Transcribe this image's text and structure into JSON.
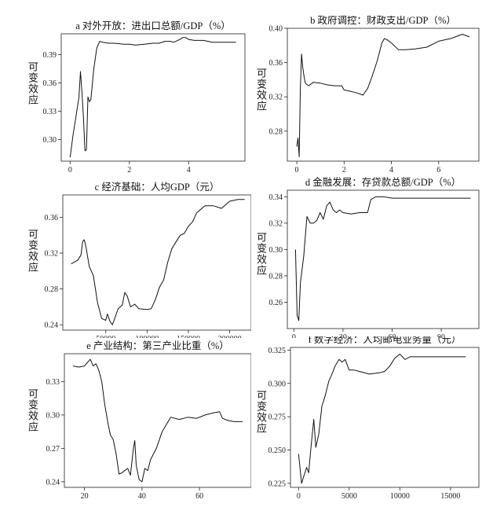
{
  "y_axis_label": "可变效应",
  "chart_data": [
    {
      "type": "line",
      "title": "a 对外开放：进出口总额/GDP（%）",
      "xlabel": "",
      "ylabel": "可变效应",
      "xlim": [
        -0.3,
        5.9
      ],
      "ylim": [
        0.277,
        0.412
      ],
      "xticks": [
        0,
        2,
        4
      ],
      "yticks": [
        0.3,
        0.33,
        0.36,
        0.39
      ],
      "yticklabels": [
        "0.30",
        "0.33",
        "0.36",
        "0.39"
      ],
      "series": [
        {
          "x": [
            0.0,
            0.1,
            0.2,
            0.3,
            0.35,
            0.4,
            0.45,
            0.5,
            0.55,
            0.6,
            0.65,
            0.7,
            0.8,
            0.9,
            1.0,
            1.1,
            1.3,
            1.5,
            1.8,
            2.0,
            2.2,
            2.5,
            2.8,
            3.0,
            3.2,
            3.4,
            3.5,
            3.7,
            3.8,
            3.9,
            4.0,
            4.2,
            4.5,
            4.8,
            5.0,
            5.3,
            5.6
          ],
          "y": [
            0.281,
            0.305,
            0.325,
            0.345,
            0.372,
            0.35,
            0.323,
            0.288,
            0.289,
            0.345,
            0.34,
            0.342,
            0.375,
            0.397,
            0.404,
            0.403,
            0.402,
            0.402,
            0.401,
            0.401,
            0.4,
            0.401,
            0.402,
            0.402,
            0.404,
            0.404,
            0.403,
            0.406,
            0.408,
            0.408,
            0.406,
            0.405,
            0.405,
            0.403,
            0.403,
            0.403,
            0.403
          ]
        }
      ]
    },
    {
      "type": "line",
      "title": "b 政府调控：财政支出/GDP（%）",
      "xlabel": "",
      "ylabel": "可变效应",
      "xlim": [
        -0.4,
        7.7
      ],
      "ylim": [
        0.245,
        0.4
      ],
      "xticks": [
        0,
        2,
        4,
        6
      ],
      "yticks": [
        0.28,
        0.32,
        0.36,
        0.4
      ],
      "yticklabels": [
        "0.28",
        "0.32",
        "0.36",
        "0.40"
      ],
      "series": [
        {
          "x": [
            0.0,
            0.05,
            0.1,
            0.15,
            0.2,
            0.25,
            0.3,
            0.35,
            0.4,
            0.5,
            0.7,
            1.0,
            1.3,
            1.6,
            1.9,
            2.0,
            2.2,
            2.5,
            2.8,
            3.0,
            3.2,
            3.4,
            3.6,
            3.7,
            3.8,
            4.0,
            4.3,
            4.6,
            5.0,
            5.5,
            6.0,
            6.5,
            7.0,
            7.3
          ],
          "y": [
            0.262,
            0.272,
            0.25,
            0.33,
            0.37,
            0.355,
            0.345,
            0.337,
            0.335,
            0.333,
            0.337,
            0.336,
            0.334,
            0.333,
            0.333,
            0.328,
            0.327,
            0.325,
            0.322,
            0.33,
            0.345,
            0.362,
            0.383,
            0.388,
            0.387,
            0.383,
            0.375,
            0.375,
            0.376,
            0.378,
            0.385,
            0.388,
            0.393,
            0.39
          ]
        }
      ]
    },
    {
      "type": "line",
      "title": "c 经济基础：人均GDP（元）",
      "xlabel": "",
      "ylabel": "可变效应",
      "xlim": [
        -2000,
        226000
      ],
      "ylim": [
        0.234,
        0.385
      ],
      "xticks": [
        50000,
        100000,
        150000,
        200000
      ],
      "yticks": [
        0.24,
        0.28,
        0.32,
        0.36
      ],
      "yticklabels": [
        "0.24",
        "0.28",
        "0.32",
        "0.36"
      ],
      "series": [
        {
          "x": [
            8000,
            12000,
            16000,
            20000,
            22000,
            24000,
            26000,
            30000,
            35000,
            40000,
            45000,
            50000,
            52000,
            55000,
            58000,
            60000,
            65000,
            70000,
            73000,
            76000,
            80000,
            85000,
            90000,
            100000,
            105000,
            110000,
            115000,
            120000,
            125000,
            130000,
            140000,
            145000,
            150000,
            155000,
            160000,
            170000,
            180000,
            190000,
            200000,
            210000,
            218000
          ],
          "y": [
            0.308,
            0.31,
            0.312,
            0.318,
            0.333,
            0.335,
            0.327,
            0.305,
            0.295,
            0.265,
            0.247,
            0.245,
            0.252,
            0.244,
            0.24,
            0.245,
            0.258,
            0.262,
            0.276,
            0.272,
            0.26,
            0.263,
            0.258,
            0.257,
            0.258,
            0.268,
            0.282,
            0.29,
            0.31,
            0.325,
            0.34,
            0.342,
            0.35,
            0.355,
            0.365,
            0.373,
            0.373,
            0.37,
            0.378,
            0.38,
            0.38
          ]
        }
      ]
    },
    {
      "type": "line",
      "title": "d 金融发展：存贷款总额/GDP（%）",
      "xlabel": "",
      "ylabel": "可变效应",
      "xlim": [
        -4,
        113
      ],
      "ylim": [
        0.24,
        0.345
      ],
      "xticks": [
        0,
        30,
        60,
        90
      ],
      "yticks": [
        0.26,
        0.28,
        0.3,
        0.32,
        0.34
      ],
      "yticklabels": [
        "0.26",
        "0.28",
        "0.30",
        "0.32",
        "0.34"
      ],
      "series": [
        {
          "x": [
            1,
            2,
            3,
            4,
            6,
            8,
            10,
            12,
            14,
            16,
            18,
            20,
            22,
            24,
            26,
            28,
            30,
            35,
            40,
            45,
            47,
            50,
            55,
            60,
            70,
            80,
            90,
            100,
            108
          ],
          "y": [
            0.3,
            0.25,
            0.246,
            0.275,
            0.295,
            0.325,
            0.32,
            0.32,
            0.322,
            0.328,
            0.323,
            0.333,
            0.336,
            0.33,
            0.328,
            0.33,
            0.328,
            0.327,
            0.328,
            0.328,
            0.338,
            0.34,
            0.34,
            0.339,
            0.339,
            0.339,
            0.339,
            0.339,
            0.339
          ]
        }
      ]
    },
    {
      "type": "line",
      "title": "e 产业结构：第三产业比重（%）",
      "xlabel": "",
      "ylabel": "可变效应",
      "xlim": [
        13,
        78
      ],
      "ylim": [
        0.235,
        0.355
      ],
      "xticks": [
        20,
        40,
        60
      ],
      "yticks": [
        0.24,
        0.27,
        0.3,
        0.33
      ],
      "yticklabels": [
        "0.24",
        "0.27",
        "0.30",
        "0.33"
      ],
      "series": [
        {
          "x": [
            16,
            18,
            20,
            21,
            22,
            23,
            24,
            25,
            26,
            27,
            28,
            29,
            30,
            31,
            32,
            33,
            34,
            35,
            36,
            37,
            37.5,
            38,
            39,
            40,
            41,
            42,
            43,
            44,
            45,
            47,
            50,
            53,
            56,
            59,
            62,
            65,
            67,
            68,
            70,
            72,
            75
          ],
          "y": [
            0.344,
            0.343,
            0.344,
            0.347,
            0.35,
            0.344,
            0.346,
            0.34,
            0.33,
            0.31,
            0.295,
            0.282,
            0.278,
            0.265,
            0.247,
            0.248,
            0.25,
            0.252,
            0.246,
            0.27,
            0.277,
            0.255,
            0.242,
            0.24,
            0.252,
            0.25,
            0.26,
            0.265,
            0.27,
            0.285,
            0.298,
            0.296,
            0.298,
            0.297,
            0.3,
            0.302,
            0.303,
            0.297,
            0.295,
            0.294,
            0.294
          ]
        }
      ]
    },
    {
      "type": "line",
      "title": "f 数字经济：人均邮电业务量（元）",
      "xlabel": "",
      "ylabel": "可变效应",
      "xlim": [
        -800,
        17800
      ],
      "ylim": [
        0.222,
        0.327
      ],
      "xticks": [
        0,
        5000,
        10000,
        15000
      ],
      "yticks": [
        0.225,
        0.25,
        0.275,
        0.3,
        0.325
      ],
      "yticklabels": [
        "0.225",
        "0.250",
        "0.275",
        "0.300",
        "0.325"
      ],
      "series": [
        {
          "x": [
            0,
            300,
            500,
            800,
            1000,
            1200,
            1500,
            1700,
            2000,
            2300,
            2600,
            3000,
            3300,
            3600,
            4000,
            4300,
            4600,
            5000,
            5500,
            6000,
            7000,
            8000,
            8500,
            9000,
            9500,
            10000,
            10500,
            11000,
            12000,
            14000,
            16500
          ],
          "y": [
            0.247,
            0.225,
            0.23,
            0.237,
            0.233,
            0.25,
            0.273,
            0.252,
            0.262,
            0.283,
            0.29,
            0.302,
            0.307,
            0.313,
            0.318,
            0.316,
            0.318,
            0.31,
            0.31,
            0.309,
            0.307,
            0.308,
            0.309,
            0.313,
            0.319,
            0.322,
            0.318,
            0.32,
            0.32,
            0.32,
            0.32
          ]
        }
      ]
    }
  ]
}
